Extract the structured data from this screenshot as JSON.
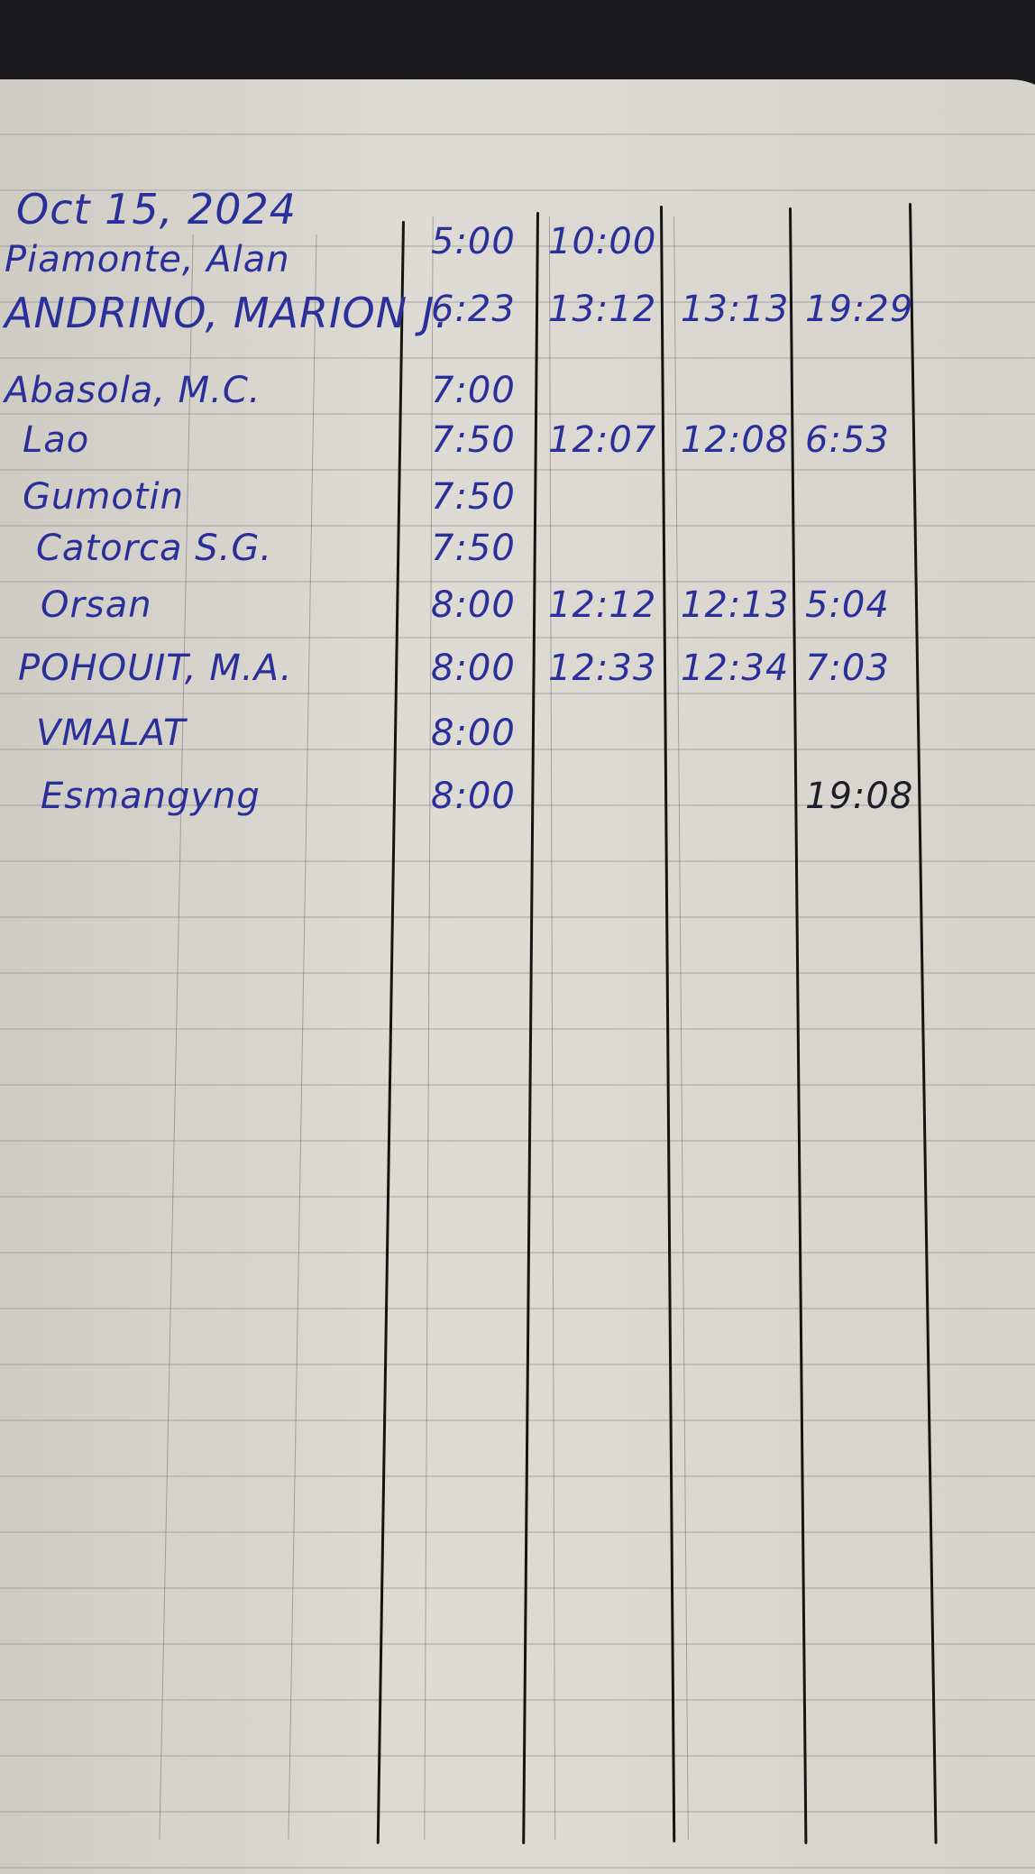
{
  "date": "Oct 15, 2024",
  "ink_color": "#2a2f9a",
  "rows": [
    {
      "name": "Piamonte, Alan",
      "t1": "5:00",
      "t2": "10:00",
      "t3": "",
      "t4": ""
    },
    {
      "name": "ANDRINO, MARION J.",
      "t1": "6:23",
      "t2": "13:12",
      "t3": "13:13",
      "t4": "19:29"
    },
    {
      "name": "Abasola, M.C.",
      "t1": "7:00",
      "t2": "",
      "t3": "",
      "t4": ""
    },
    {
      "name": "Lao",
      "t1": "7:50",
      "t2": "12:07",
      "t3": "12:08",
      "t4": "6:53"
    },
    {
      "name": "Gumotin",
      "t1": "7:50",
      "t2": "",
      "t3": "",
      "t4": ""
    },
    {
      "name": "Catorca S.G.",
      "t1": "7:50",
      "t2": "",
      "t3": "",
      "t4": ""
    },
    {
      "name": "Orsan",
      "t1": "8:00",
      "t2": "12:12",
      "t3": "12:13",
      "t4": "5:04"
    },
    {
      "name": "POHOUIT, M.A.",
      "t1": "8:00",
      "t2": "12:33",
      "t3": "12:34",
      "t4": "7:03"
    },
    {
      "name": "VMALAT",
      "t1": "8:00",
      "t2": "",
      "t3": "",
      "t4": ""
    },
    {
      "name": "Esmangyng",
      "t1": "8:00",
      "t2": "",
      "t3": "",
      "t4": "19:08"
    }
  ]
}
